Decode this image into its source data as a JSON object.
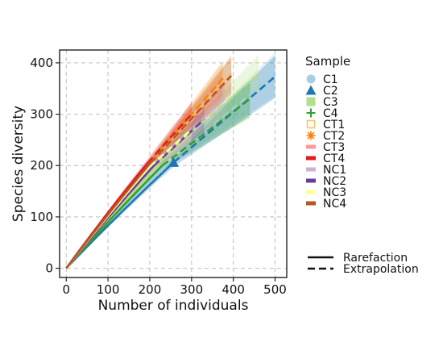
{
  "chart_data": {
    "type": "line",
    "title": "",
    "xlabel": "Number of individuals",
    "ylabel": "Species diversity",
    "xlim": [
      -16,
      528
    ],
    "ylim": [
      -18,
      425
    ],
    "xticks": [
      0,
      100,
      200,
      300,
      400,
      500
    ],
    "yticks": [
      0,
      100,
      200,
      300,
      400
    ],
    "grid": true,
    "legend_title": "Sample",
    "legend_position": "right",
    "series": [
      {
        "name": "C1",
        "color": "#a6cee3",
        "shape": "circle",
        "n_obs": 250,
        "s_obs": 210,
        "x_end": 500,
        "y_end": 378
      },
      {
        "name": "C2",
        "color": "#1f78b4",
        "shape": "triangle",
        "n_obs": 257,
        "s_obs": 206,
        "x_end": 500,
        "y_end": 373
      },
      {
        "name": "C3",
        "color": "#b2df8a",
        "shape": "square",
        "n_obs": 262,
        "s_obs": 238,
        "x_end": 460,
        "y_end": 378
      },
      {
        "name": "C4",
        "color": "#33a02c",
        "shape": "plus",
        "n_obs": 230,
        "s_obs": 200,
        "x_end": 440,
        "y_end": 330
      },
      {
        "name": "CT1",
        "color": "#fdbf6f",
        "shape": "square-open",
        "n_obs": 210,
        "s_obs": 215,
        "x_end": 395,
        "y_end": 380
      },
      {
        "name": "CT2",
        "color": "#ff7f00",
        "shape": "asterisk",
        "n_obs": 205,
        "s_obs": 210,
        "x_end": 375,
        "y_end": 370
      },
      {
        "name": "CT3",
        "color": "#fb9a99",
        "shape": "bar",
        "n_obs": 200,
        "s_obs": 205,
        "x_end": 370,
        "y_end": 345
      },
      {
        "name": "CT4",
        "color": "#e31a1c",
        "shape": "bar",
        "n_obs": 195,
        "s_obs": 205,
        "x_end": 300,
        "y_end": 300
      },
      {
        "name": "NC1",
        "color": "#cab2d6",
        "shape": "bar",
        "n_obs": 205,
        "s_obs": 200,
        "x_end": 380,
        "y_end": 330
      },
      {
        "name": "NC2",
        "color": "#6a3d9a",
        "shape": "bar",
        "n_obs": 210,
        "s_obs": 200,
        "x_end": 330,
        "y_end": 290
      },
      {
        "name": "NC3",
        "color": "#ffff99",
        "shape": "bar",
        "n_obs": 200,
        "s_obs": 198,
        "x_end": 300,
        "y_end": 270
      },
      {
        "name": "NC4",
        "color": "#b15928",
        "shape": "bar",
        "n_obs": 202,
        "s_obs": 205,
        "x_end": 395,
        "y_end": 375
      }
    ],
    "method_legend": [
      {
        "label": "Rarefaction",
        "style": "solid"
      },
      {
        "label": "Extrapolation",
        "style": "dashed"
      }
    ]
  }
}
